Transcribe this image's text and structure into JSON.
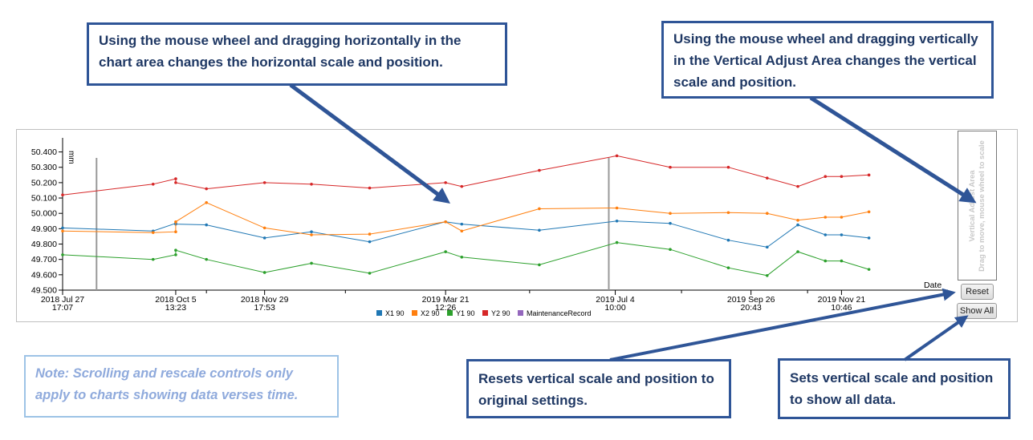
{
  "callouts": {
    "chart_area": "Using the mouse wheel and dragging horizontally in the chart area changes the horizontal scale and position.",
    "vertical_area": "Using the mouse wheel and dragging vertically in the Vertical Adjust Area changes the vertical scale and position.",
    "reset": "Resets vertical scale and position to original settings.",
    "show_all": "Sets vertical scale and position to show all data."
  },
  "note": "Note: Scrolling and rescale controls only apply to charts showing data verses time.",
  "controls": {
    "reset_label": "Reset",
    "show_all_label": "Show All"
  },
  "vertical_adjust": {
    "title": "Vertical Adjust Area",
    "hint": "Drag to move, mouse wheel to scale"
  },
  "colors": {
    "X1 90": "#1f77b4",
    "X2 90": "#ff7f0e",
    "Y1 90": "#2ca02c",
    "Y2 90": "#d62728",
    "MaintenanceRecord": "#9467bd",
    "callout_border": "#2f5597",
    "callout_text": "#1f3864",
    "note_border": "#9dc3e6",
    "note_text": "#8faadc"
  },
  "chart_data": {
    "type": "line",
    "ylabel": "mm",
    "xlabel": "Date",
    "ylim": [
      49.5,
      50.45
    ],
    "yticks": [
      "49.500",
      "49.600",
      "49.700",
      "49.800",
      "49.900",
      "50.000",
      "50.100",
      "50.200",
      "50.300",
      "50.400"
    ],
    "x_range": [
      "2018-07-27",
      "2020-01-05"
    ],
    "xticks": [
      {
        "date": "2018-07-27",
        "line1": "2018 Jul 27",
        "line2": "17:07"
      },
      {
        "date": "2018-10-05",
        "line1": "2018 Oct 5",
        "line2": "13:23"
      },
      {
        "date": "2018-11-29",
        "line1": "2018 Nov 29",
        "line2": "17:53"
      },
      {
        "date": "2019-03-21",
        "line1": "2019 Mar 21",
        "line2": "12:26"
      },
      {
        "date": "2019-07-04",
        "line1": "2019 Jul 4",
        "line2": "10:00"
      },
      {
        "date": "2019-09-26",
        "line1": "2019 Sep 26",
        "line2": "20:43"
      },
      {
        "date": "2019-11-21",
        "line1": "2019 Nov 21",
        "line2": "10:46"
      }
    ],
    "minor_ticks": [
      "2018-10-24",
      "2019-01-18",
      "2019-05-12",
      "2019-08-14",
      "2019-10-31"
    ],
    "maintenance_records": [
      "2018-08-17",
      "2019-06-30"
    ],
    "x": [
      "2018-07-27",
      "2018-09-21",
      "2018-10-05",
      "2018-10-05",
      "2018-10-24",
      "2018-11-29",
      "2018-12-28",
      "2019-02-02",
      "2019-03-21",
      "2019-03-31",
      "2019-05-18",
      "2019-07-05",
      "2019-08-07",
      "2019-09-12",
      "2019-10-06",
      "2019-10-25",
      "2019-11-11",
      "2019-11-21",
      "2019-12-08"
    ],
    "series": [
      {
        "name": "X1 90",
        "values": [
          49.905,
          49.885,
          49.935,
          49.93,
          49.925,
          49.84,
          49.88,
          49.815,
          49.945,
          49.93,
          49.89,
          49.95,
          49.935,
          49.825,
          49.78,
          49.925,
          49.86,
          49.86,
          49.84
        ]
      },
      {
        "name": "X2 90",
        "values": [
          49.885,
          49.875,
          49.88,
          49.945,
          50.07,
          49.905,
          49.86,
          49.865,
          49.945,
          49.885,
          50.03,
          50.035,
          50.0,
          50.005,
          50.0,
          49.955,
          49.975,
          49.975,
          50.01
        ]
      },
      {
        "name": "Y1 90",
        "values": [
          49.73,
          49.7,
          49.73,
          49.76,
          49.7,
          49.615,
          49.675,
          49.61,
          49.75,
          49.715,
          49.665,
          49.81,
          49.765,
          49.645,
          49.595,
          49.75,
          49.69,
          49.69,
          49.635
        ]
      },
      {
        "name": "Y2 90",
        "values": [
          50.12,
          50.19,
          50.225,
          50.2,
          50.16,
          50.2,
          50.19,
          50.165,
          50.2,
          50.175,
          50.28,
          50.375,
          50.3,
          50.3,
          50.23,
          50.175,
          50.24,
          50.24,
          50.25
        ]
      }
    ],
    "legend": [
      "X1 90",
      "X2 90",
      "Y1 90",
      "Y2 90",
      "MaintenanceRecord"
    ]
  }
}
